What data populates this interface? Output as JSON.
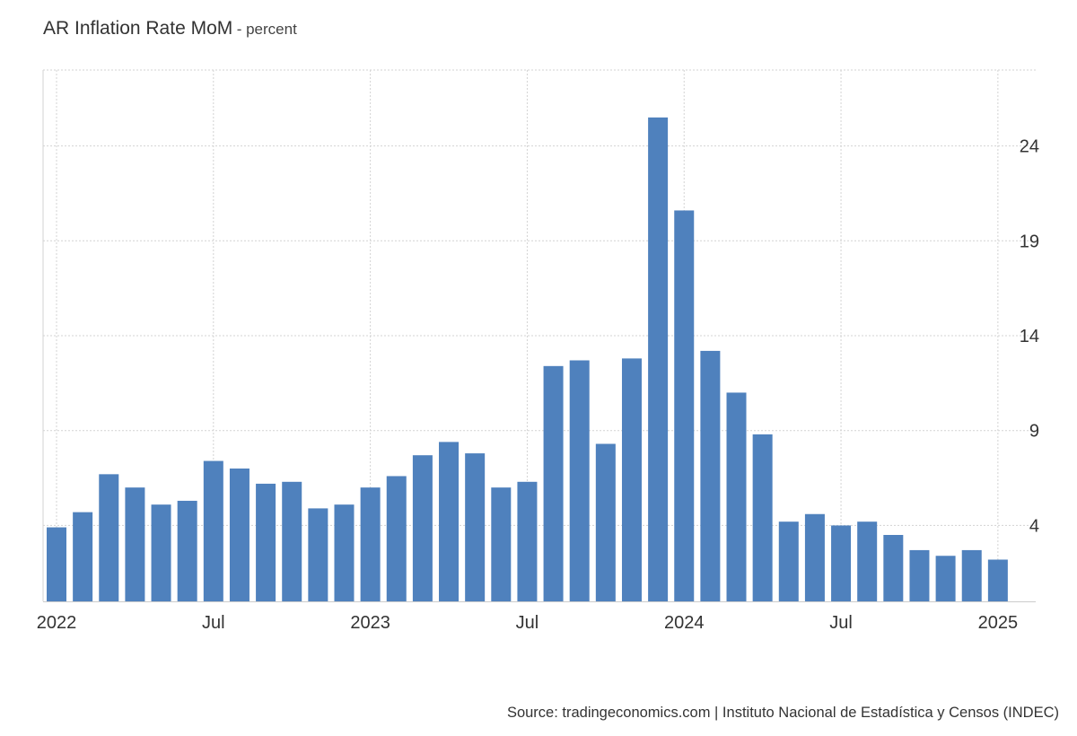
{
  "title": "AR Inflation Rate MoM",
  "unit": "- percent",
  "source": "Source: tradingeconomics.com | Instituto Nacional de Estadística y Censos (INDEC)",
  "colors": {
    "bar": "#4f81bd",
    "grid": "#d3d3d3",
    "axis": "#cccccc"
  },
  "chart_data": {
    "type": "bar",
    "frequency": "monthly",
    "categories": [
      "2022-01",
      "2022-02",
      "2022-03",
      "2022-04",
      "2022-05",
      "2022-06",
      "2022-07",
      "2022-08",
      "2022-09",
      "2022-10",
      "2022-11",
      "2022-12",
      "2023-01",
      "2023-02",
      "2023-03",
      "2023-04",
      "2023-05",
      "2023-06",
      "2023-07",
      "2023-08",
      "2023-09",
      "2023-10",
      "2023-11",
      "2023-12",
      "2024-01",
      "2024-02",
      "2024-03",
      "2024-04",
      "2024-05",
      "2024-06",
      "2024-07",
      "2024-08",
      "2024-09",
      "2024-10",
      "2024-11",
      "2024-12",
      "2025-01"
    ],
    "values": [
      3.9,
      4.7,
      6.7,
      6.0,
      5.1,
      5.3,
      7.4,
      7.0,
      6.2,
      6.3,
      4.9,
      5.1,
      6.0,
      6.6,
      7.7,
      8.4,
      7.8,
      6.0,
      6.3,
      12.4,
      12.7,
      8.3,
      12.8,
      25.5,
      20.6,
      13.2,
      11.0,
      8.8,
      4.2,
      4.6,
      4.0,
      4.2,
      3.5,
      2.7,
      2.4,
      2.7,
      2.2
    ],
    "ylim": [
      0,
      28
    ],
    "yticks": [
      4,
      9,
      14,
      19,
      24
    ],
    "xticks": [
      {
        "index": 0,
        "label": "2022"
      },
      {
        "index": 6,
        "label": "Jul"
      },
      {
        "index": 12,
        "label": "2023"
      },
      {
        "index": 18,
        "label": "Jul"
      },
      {
        "index": 24,
        "label": "2024"
      },
      {
        "index": 30,
        "label": "Jul"
      },
      {
        "index": 36,
        "label": "2025"
      }
    ],
    "grid": true,
    "yaxis_side": "right",
    "xlabel": "",
    "ylabel": ""
  }
}
